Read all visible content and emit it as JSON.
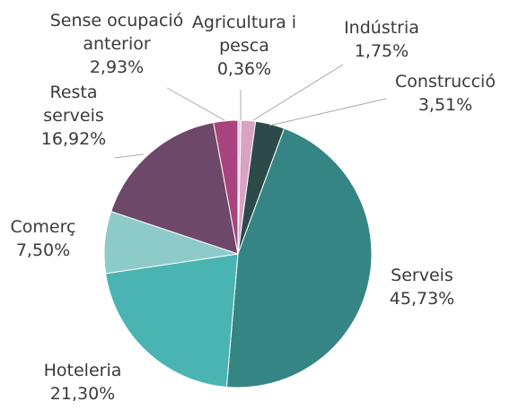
{
  "chart_data": {
    "type": "pie",
    "categories": [
      "Agricultura i pesca",
      "Indústria",
      "Construcció",
      "Serveis",
      "Hoteleria",
      "Comerç",
      "Resta serveis",
      "Sense ocupació anterior"
    ],
    "values": [
      0.36,
      1.75,
      3.51,
      45.73,
      21.3,
      7.5,
      16.92,
      2.93
    ],
    "value_labels": [
      "0,36%",
      "1,75%",
      "3,51%",
      "45,73%",
      "21,30%",
      "7,50%",
      "16,92%",
      "2,93%"
    ],
    "colors": [
      "#f0c6dc",
      "#d9a3c4",
      "#2c4a4a",
      "#358585",
      "#4ab4b2",
      "#8ccbc8",
      "#6e4868",
      "#a9437e"
    ]
  }
}
